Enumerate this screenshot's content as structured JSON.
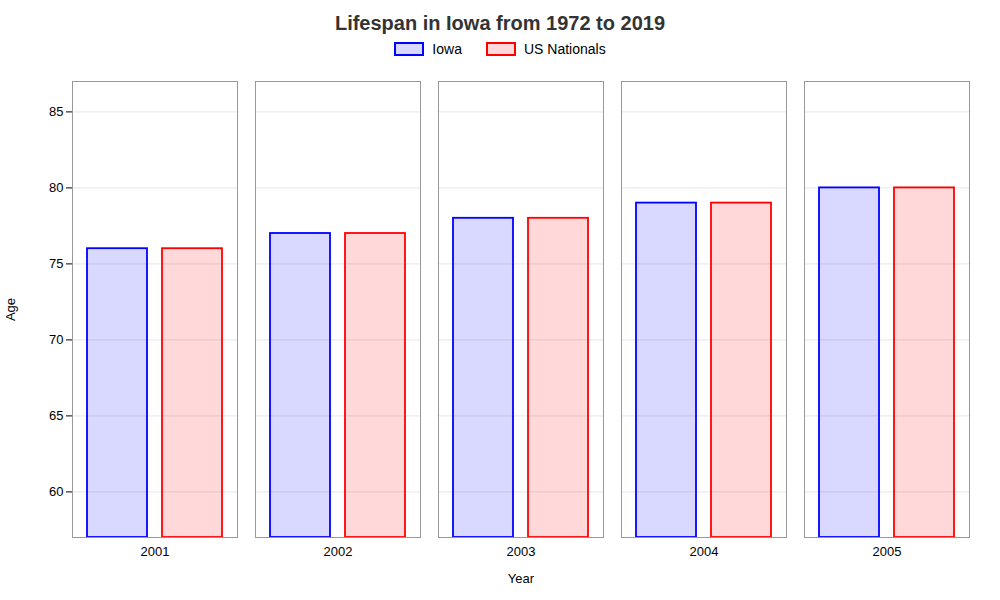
{
  "chart_data": {
    "type": "bar",
    "title": "Lifespan in Iowa from 1972 to 2019",
    "xlabel": "Year",
    "ylabel": "Age",
    "categories": [
      "2001",
      "2002",
      "2003",
      "2004",
      "2005"
    ],
    "series": [
      {
        "name": "Iowa",
        "color": "#0000ff",
        "values": [
          76,
          77,
          78,
          79,
          80
        ]
      },
      {
        "name": "US Nationals",
        "color": "#ff0000",
        "values": [
          76,
          77,
          78,
          79,
          80
        ]
      }
    ],
    "ylim": [
      57,
      87
    ],
    "yticks": [
      60,
      65,
      70,
      75,
      80,
      85
    ],
    "grid": true
  }
}
